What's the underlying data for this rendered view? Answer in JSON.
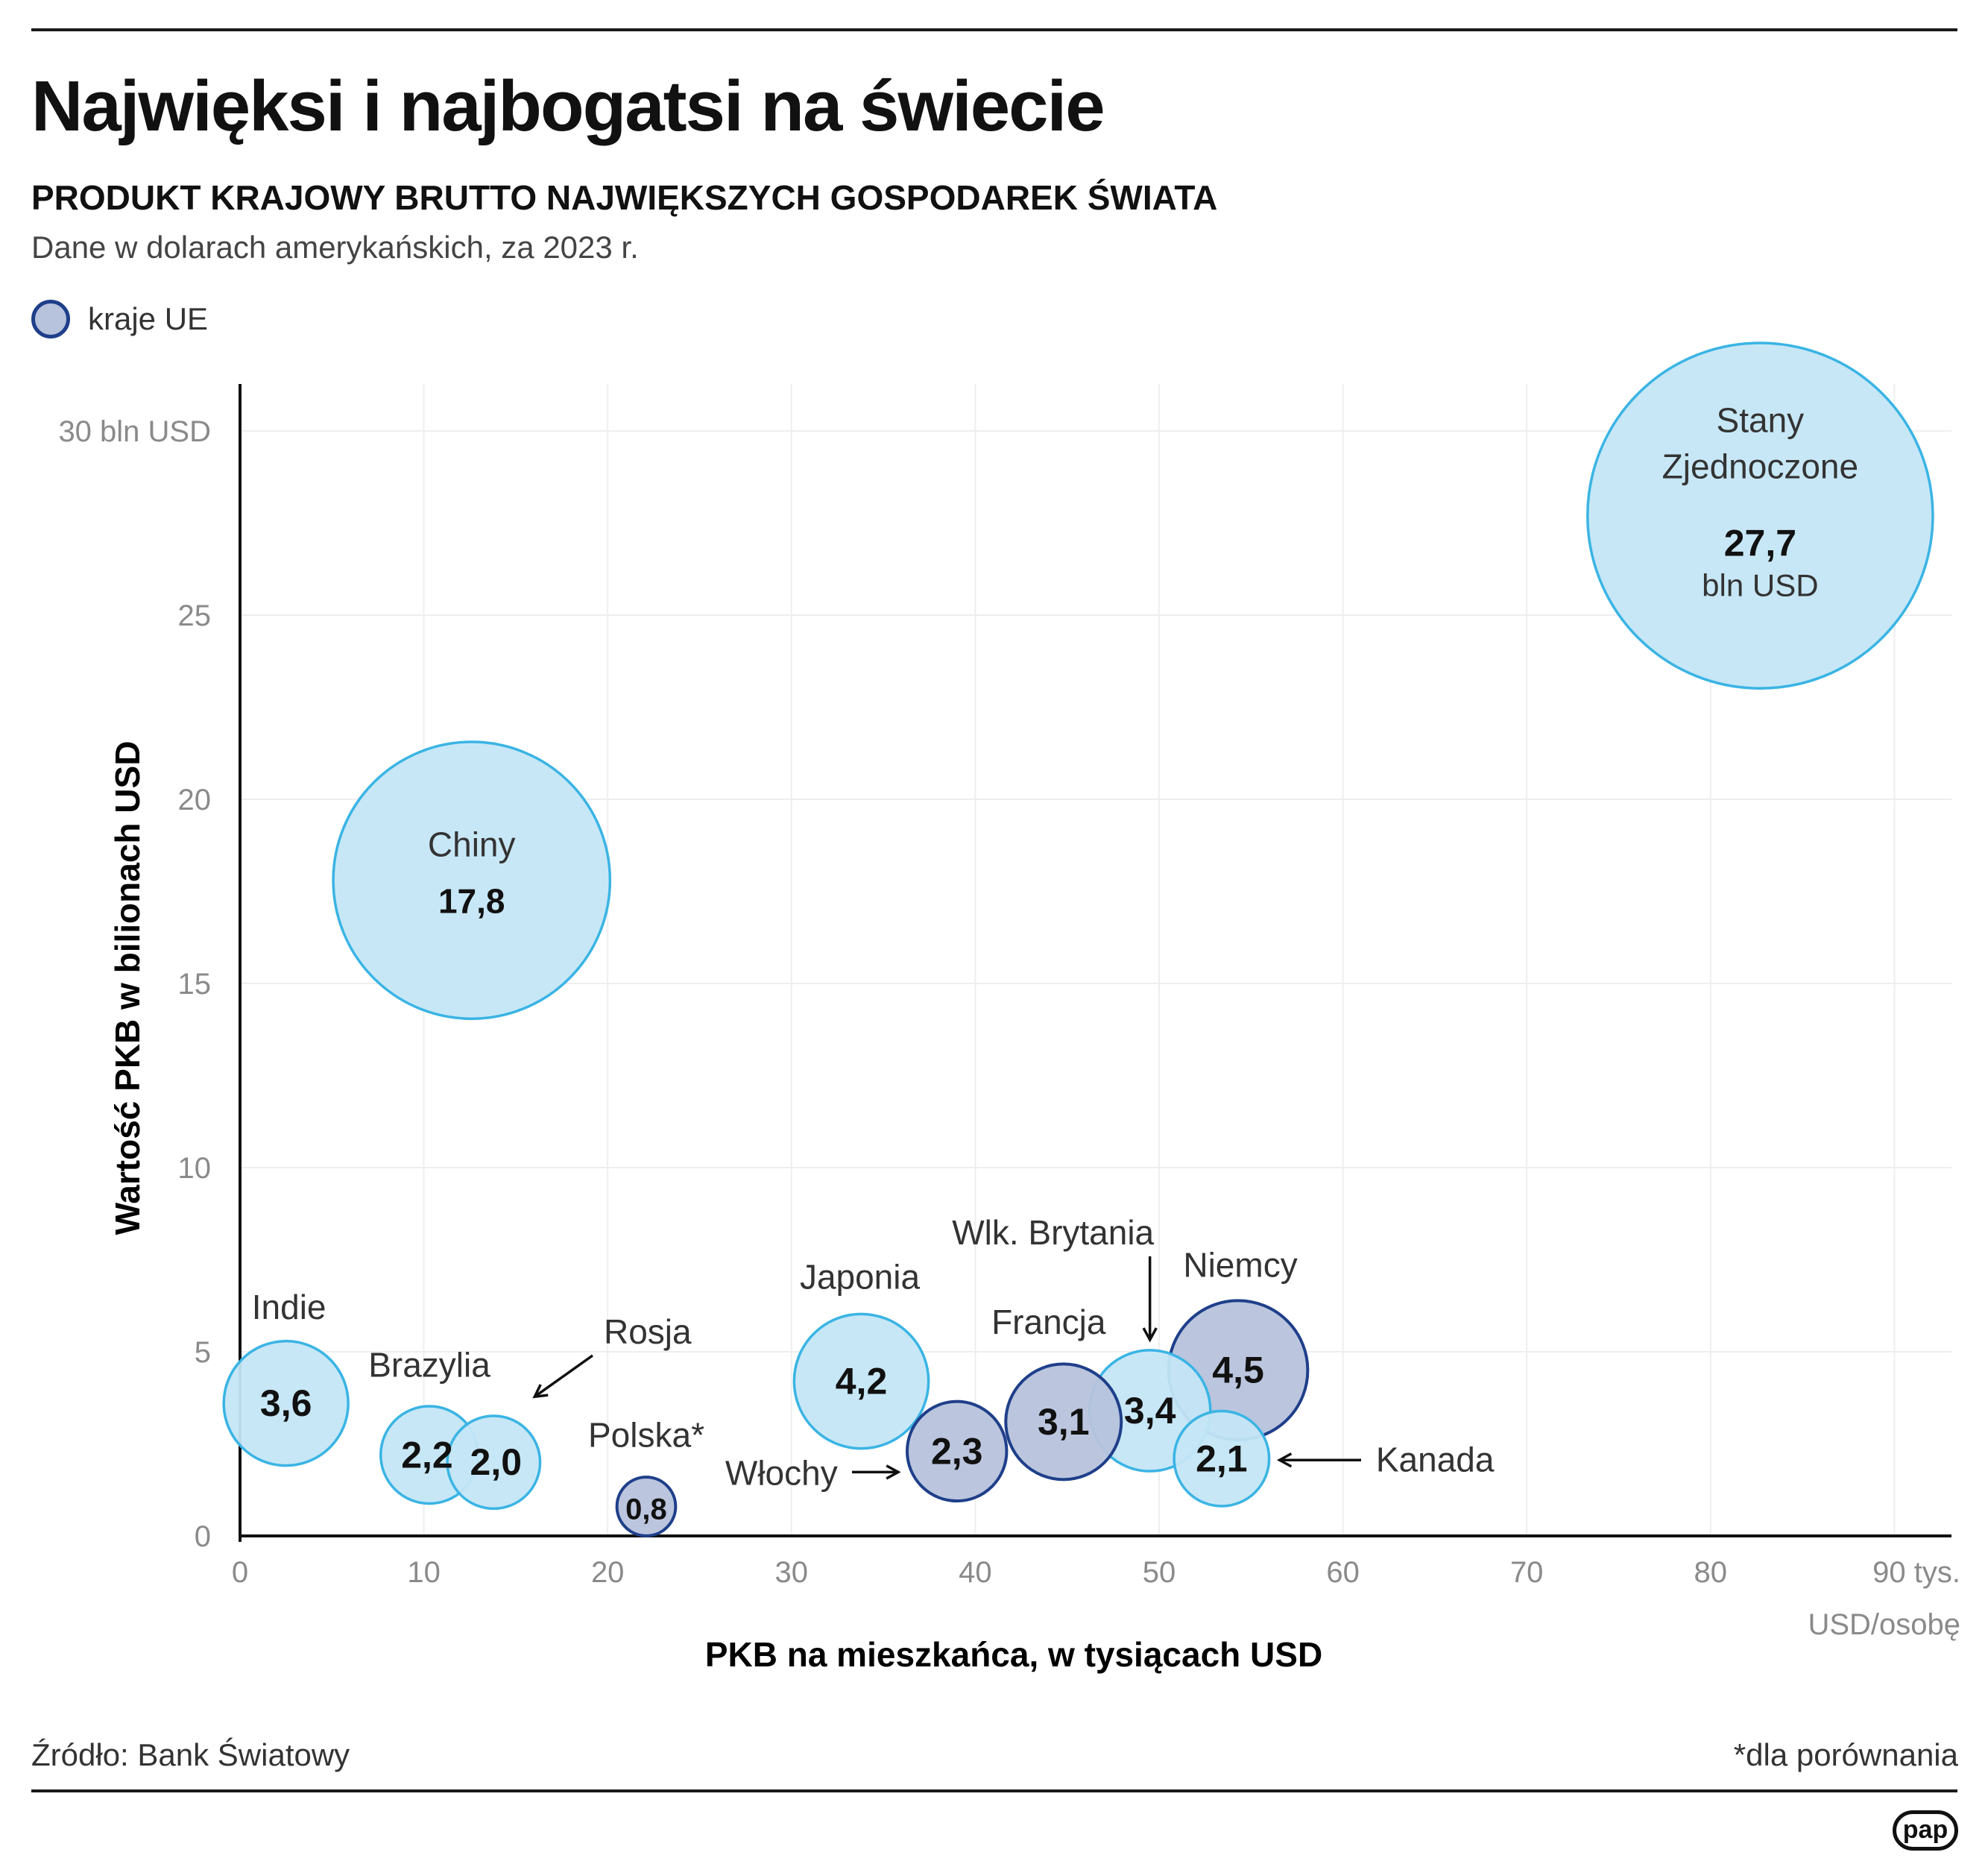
{
  "header": {
    "title": "Najwięksi i najbogatsi na świecie",
    "subtitle": "PRODUKT KRAJOWY BRUTTO NAJWIĘKSZYCH GOSPODAREK ŚWIATA",
    "note": "Dane w dolarach amerykańskich, za 2023 r."
  },
  "legend": {
    "label": "kraje UE",
    "color_eu": "#b7c3dc",
    "color_eu_border": "#1f3f8a"
  },
  "footer": {
    "source": "Źródło: Bank Światowy",
    "footnote": "*dla porównania",
    "logo": "pap"
  },
  "colors": {
    "non_eu_fill": "#c4e6f6",
    "non_eu_border": "#3ab4e4",
    "eu_fill": "#b7c3dc",
    "eu_border": "#1f3f8a"
  },
  "chart_data": {
    "type": "scatter",
    "xlabel": "PKB na mieszkańca, w tysiącach USD",
    "ylabel": "Wartość PKB w bilionach USD",
    "xlim": [
      0,
      93
    ],
    "ylim": [
      0,
      31
    ],
    "x_ticks": [
      {
        "value": 0,
        "label": "0"
      },
      {
        "value": 10,
        "label": "10"
      },
      {
        "value": 20,
        "label": "20"
      },
      {
        "value": 30,
        "label": "30"
      },
      {
        "value": 40,
        "label": "40"
      },
      {
        "value": 50,
        "label": "50"
      },
      {
        "value": 60,
        "label": "60"
      },
      {
        "value": 70,
        "label": "70"
      },
      {
        "value": 80,
        "label": "80"
      },
      {
        "value": 90,
        "label": "90 tys."
      }
    ],
    "x_unit": "USD/osobę",
    "y_ticks": [
      {
        "value": 0,
        "label": "0"
      },
      {
        "value": 5,
        "label": "5"
      },
      {
        "value": 10,
        "label": "10"
      },
      {
        "value": 15,
        "label": "15"
      },
      {
        "value": 20,
        "label": "20"
      },
      {
        "value": 25,
        "label": "25"
      },
      {
        "value": 30,
        "label": "30 bln USD"
      }
    ],
    "grid": true,
    "points": [
      {
        "name": "Stany Zjednoczone",
        "x": 82.7,
        "y": 27.7,
        "label": "27,7",
        "unit": "bln USD",
        "eu": false
      },
      {
        "name": "Chiny",
        "x": 12.6,
        "y": 17.8,
        "label": "17,8",
        "eu": false
      },
      {
        "name": "Indie",
        "x": 2.5,
        "y": 3.6,
        "label": "3,6",
        "eu": false
      },
      {
        "name": "Brazylia",
        "x": 10.3,
        "y": 2.2,
        "label": "2,2",
        "eu": false
      },
      {
        "name": "Rosja",
        "x": 13.8,
        "y": 2.0,
        "label": "2,0",
        "eu": false
      },
      {
        "name": "Polska*",
        "x": 22.1,
        "y": 0.8,
        "label": "0,8",
        "eu": true
      },
      {
        "name": "Japonia",
        "x": 33.8,
        "y": 4.2,
        "label": "4,2",
        "eu": false
      },
      {
        "name": "Włochy",
        "x": 39.0,
        "y": 2.3,
        "label": "2,3",
        "eu": true
      },
      {
        "name": "Francja",
        "x": 44.8,
        "y": 3.1,
        "label": "3,1",
        "eu": true
      },
      {
        "name": "Wlk. Brytania",
        "x": 49.5,
        "y": 3.4,
        "label": "3,4",
        "eu": false
      },
      {
        "name": "Niemcy",
        "x": 54.3,
        "y": 4.5,
        "label": "4,5",
        "eu": true
      },
      {
        "name": "Kanada",
        "x": 53.4,
        "y": 2.1,
        "label": "2,1",
        "eu": false
      }
    ]
  }
}
